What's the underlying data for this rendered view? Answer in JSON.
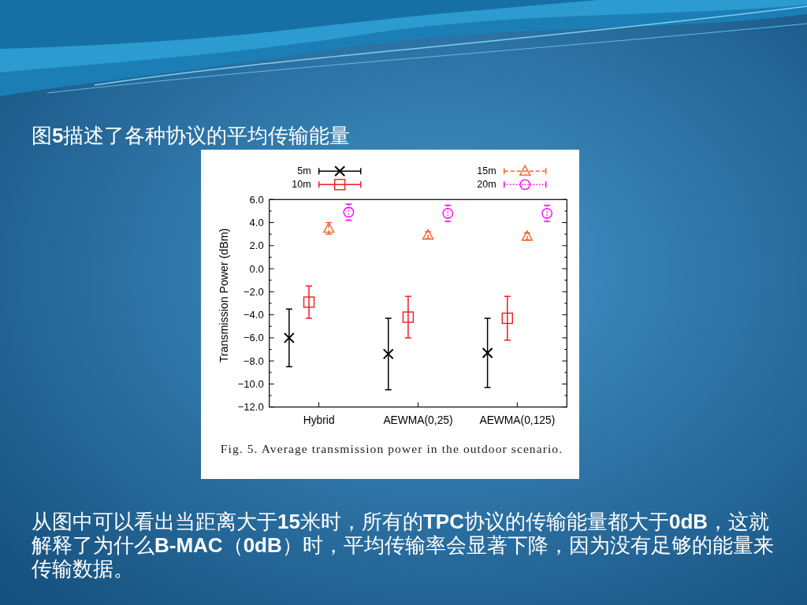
{
  "chart_data": {
    "type": "scatter",
    "title": "图**5**描述了各种协议的平均传输能量",
    "ylabel": "Transmission Power (dBm)",
    "categories": [
      "Hybrid",
      "AEWMA(0,25)",
      "AEWMA(0,125)"
    ],
    "series": [
      {
        "name": "5m",
        "color": "#000000",
        "marker": "cross",
        "line_style": "solid",
        "values": [
          -6.0,
          -7.4,
          -7.3
        ],
        "errors": [
          2.5,
          3.1,
          3.0
        ]
      },
      {
        "name": "10m",
        "color": "#ee1c25",
        "marker": "square",
        "line_style": "solid",
        "values": [
          -2.9,
          -4.2,
          -4.3
        ],
        "errors": [
          1.4,
          1.8,
          1.9
        ]
      },
      {
        "name": "15m",
        "color": "#f4642a",
        "marker": "triangle",
        "line_style": "dashed",
        "values": [
          3.5,
          2.9,
          2.8
        ],
        "errors": [
          0.5,
          0.3,
          0.3
        ]
      },
      {
        "name": "20m",
        "color": "#ff00ff",
        "marker": "circle",
        "line_style": "dotted",
        "values": [
          4.9,
          4.8,
          4.8
        ],
        "errors": [
          0.7,
          0.7,
          0.7
        ]
      }
    ],
    "ylim": [
      -12,
      6
    ],
    "yticks": [
      {
        "value": 6,
        "label": "6.0"
      },
      {
        "value": 4,
        "label": "4.0"
      },
      {
        "value": 2,
        "label": "2.0"
      },
      {
        "value": 0,
        "label": "0.0"
      },
      {
        "value": -2,
        "label": "−2.0"
      },
      {
        "value": -4,
        "label": "−4.0"
      },
      {
        "value": -6,
        "label": "−6.0"
      },
      {
        "value": -8,
        "label": "−8.0"
      },
      {
        "value": -10,
        "label": "−10.0"
      },
      {
        "value": -12,
        "label": "−12.0"
      }
    ],
    "legend": "top",
    "annotations": [
      "Fig. 5. Average transmission power in the outdoor scenario.",
      "从图中可以看出当距离大于**15**米时，所有的**TPC**协议的传输能量都大于**0dB**，这就解释了为什么**B-MAC**（**0dB**）时，平均传输率会显著下降，因为没有足够的能量来传输数据。"
    ]
  }
}
